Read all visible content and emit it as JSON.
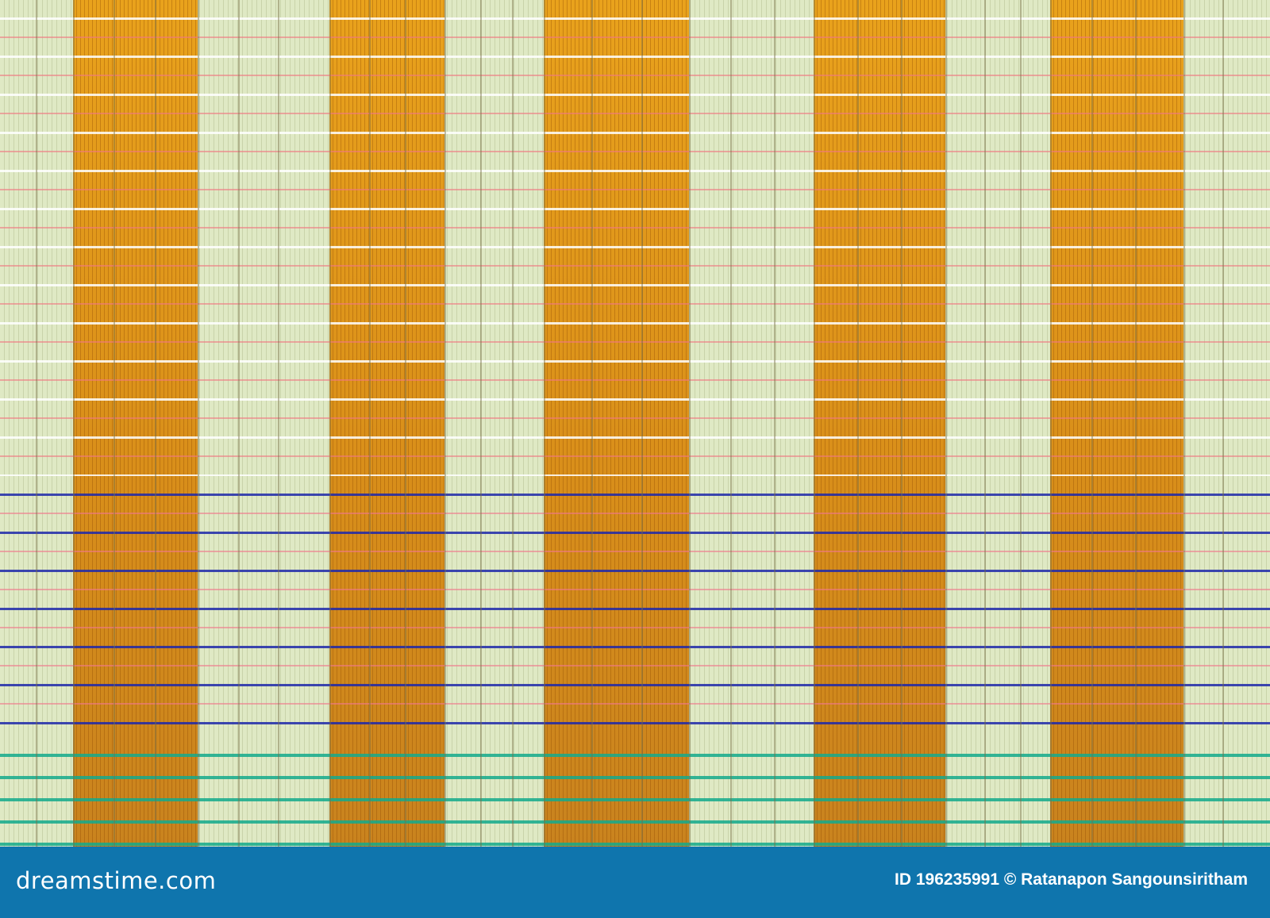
{
  "image": {
    "subject": "woven bamboo mat texture",
    "colors": {
      "orange": "#e9a21c",
      "pale_green": "#e6eecb",
      "blue_thread": "#1e28aa",
      "teal_thread": "#14aa8c",
      "pink_thread": "#f07882",
      "banner": "#0f75ad"
    }
  },
  "watermark": {
    "logo": "dreamstime.com",
    "credit": "ID 196235991 © Ratanapon Sangounsiritham"
  }
}
